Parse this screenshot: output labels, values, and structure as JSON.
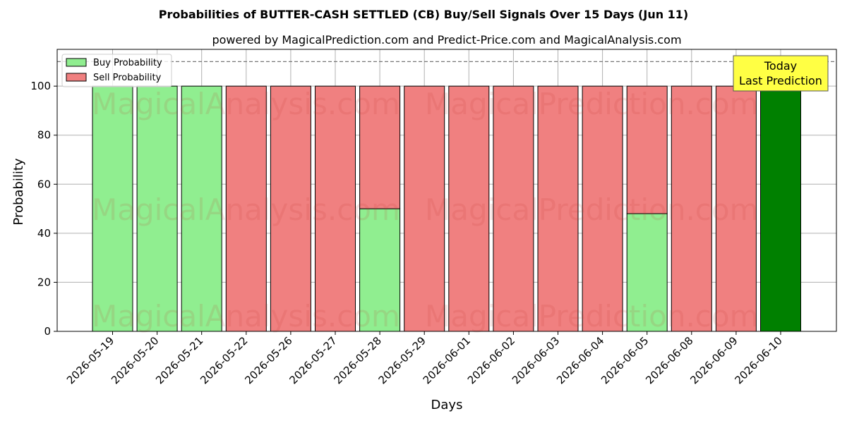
{
  "chart_data": {
    "type": "bar",
    "stacked": true,
    "title": "Probabilities of BUTTER-CASH SETTLED (CB) Buy/Sell Signals Over 15 Days (Jun 11)",
    "subtitle": "powered by MagicalPrediction.com and Predict-Price.com and MagicalAnalysis.com",
    "xlabel": "Days",
    "ylabel": "Probability",
    "ylim": [
      0,
      115
    ],
    "yticks": [
      0,
      20,
      40,
      60,
      80,
      100
    ],
    "grid": true,
    "reference_line": 110,
    "legend_position": "top-left",
    "categories": [
      "2026-05-19",
      "2026-05-20",
      "2026-05-21",
      "2026-05-22",
      "2026-05-26",
      "2026-05-27",
      "2026-05-28",
      "2026-05-29",
      "2026-06-01",
      "2026-06-02",
      "2026-06-03",
      "2026-06-04",
      "2026-06-05",
      "2026-06-08",
      "2026-06-09",
      "2026-06-10"
    ],
    "series": [
      {
        "name": "Buy Probability",
        "color": "#90ee90",
        "values": [
          100,
          100,
          100,
          0,
          0,
          0,
          50,
          0,
          0,
          0,
          0,
          0,
          48,
          0,
          0,
          100
        ]
      },
      {
        "name": "Sell Probability",
        "color": "#f08080",
        "values": [
          0,
          0,
          0,
          100,
          100,
          100,
          50,
          100,
          100,
          100,
          100,
          100,
          52,
          100,
          100,
          0
        ]
      }
    ],
    "highlight": {
      "index": 15,
      "color": "#008000",
      "label_line1": "Today",
      "label_line2": "Last Prediction",
      "box_color": "#ffff44"
    },
    "watermarks": [
      "MagicalAnalysis.com",
      "MagicalPrediction.com"
    ]
  }
}
